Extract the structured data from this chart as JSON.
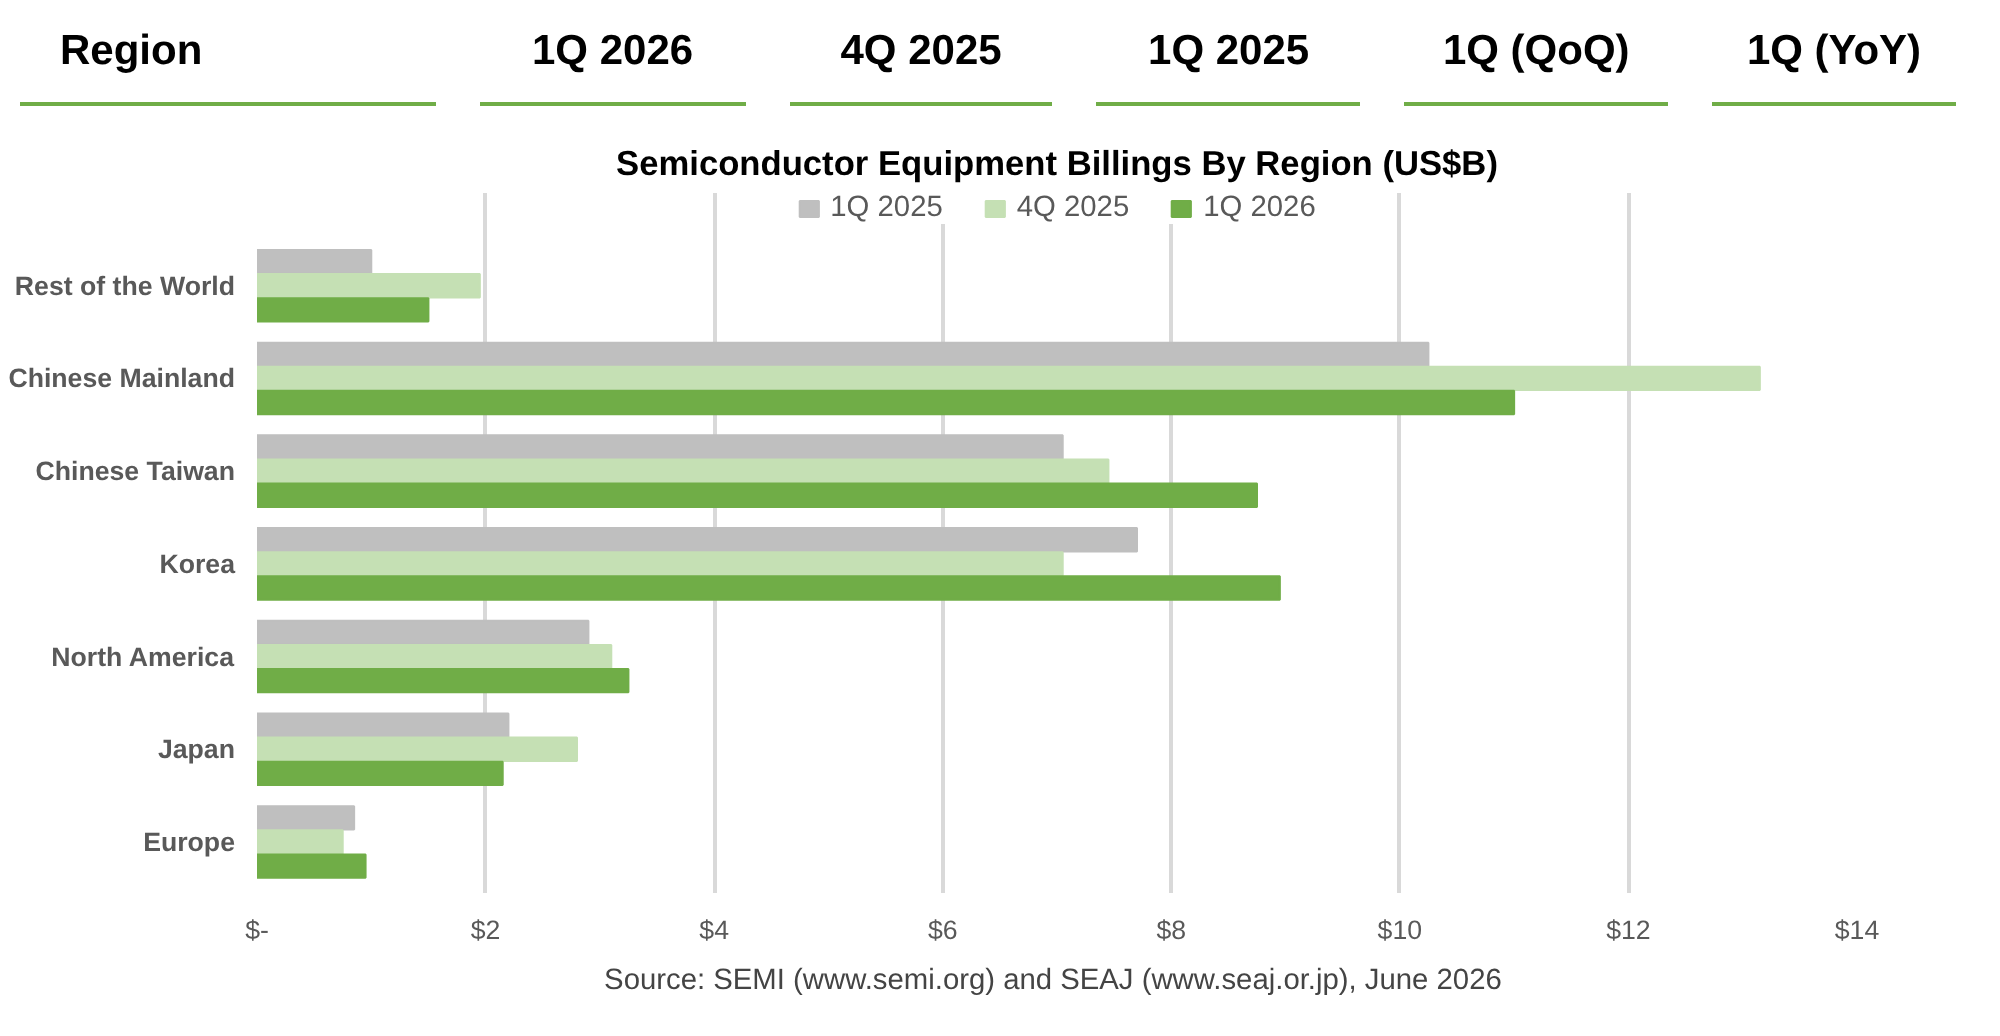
{
  "chart_data": {
    "type": "bar",
    "orientation": "horizontal",
    "title": "Semiconductor Equipment Billings By Region (US$B)",
    "categories": [
      "Rest of the World",
      "Chinese Mainland",
      "Chinese Taiwan",
      "Korea",
      "North America",
      "Japan",
      "Europe"
    ],
    "series": [
      {
        "name": "1Q 2025",
        "color": "#bfbfbf",
        "values": [
          1.0,
          10.25,
          7.05,
          7.7,
          2.9,
          2.2,
          0.85
        ]
      },
      {
        "name": "4Q 2025",
        "color": "#c5e0b4",
        "values": [
          1.95,
          13.15,
          7.45,
          7.05,
          3.1,
          2.8,
          0.75
        ]
      },
      {
        "name": "1Q 2026",
        "color": "#70ad47",
        "values": [
          1.5,
          11.0,
          8.75,
          8.95,
          3.25,
          2.15,
          0.95
        ]
      }
    ],
    "xlim": [
      0,
      14
    ],
    "xticks": [
      {
        "value": 0,
        "label": "$-"
      },
      {
        "value": 2,
        "label": "$2"
      },
      {
        "value": 4,
        "label": "$4"
      },
      {
        "value": 6,
        "label": "$6"
      },
      {
        "value": 8,
        "label": "$8"
      },
      {
        "value": 10,
        "label": "$10"
      },
      {
        "value": 12,
        "label": "$12"
      },
      {
        "value": 14,
        "label": "$14"
      }
    ],
    "grid": "x",
    "legend": "top",
    "annotations": [
      "Region",
      "1Q 2026",
      "4Q 2025",
      "1Q 2025",
      "1Q (QoQ)",
      "1Q (YoY)",
      "Source: SEMI (www.semi.org) and SEAJ (www.seaj.or.jp),  June 2026"
    ]
  }
}
